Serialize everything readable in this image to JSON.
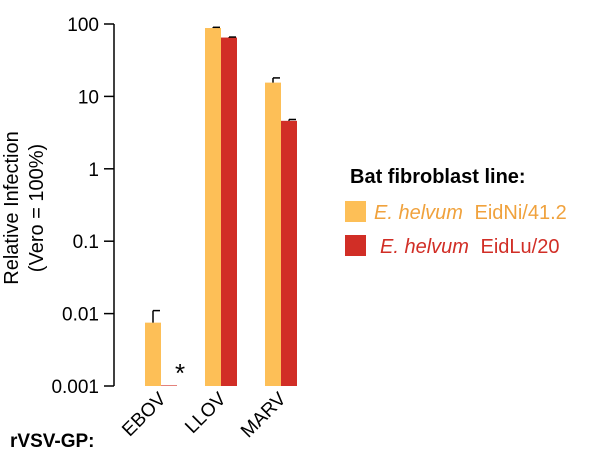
{
  "chart_data": {
    "type": "bar",
    "scale": "log",
    "ylim": [
      0.001,
      100
    ],
    "yticks": [
      "100",
      "10",
      "1",
      "0.1",
      "0.01",
      "0.001"
    ],
    "ylabel_line1": "Relative Infection",
    "ylabel_line2": "(Vero = 100%)",
    "x_prefix_label": "rVSV-GP:",
    "categories": [
      "EBOV",
      "LLOV",
      "MARV"
    ],
    "legend_title": "Bat fibroblast line:",
    "series": [
      {
        "name_species": "E. helvum",
        "name_line": "EidNi/41.2",
        "color": "#FDBF57",
        "values": [
          0.0075,
          88,
          15.5
        ],
        "errors_upper": [
          0.011,
          90,
          18
        ]
      },
      {
        "name_species": "E. helvum",
        "name_line": "EidLu/20",
        "color": "#D12E26",
        "values": [
          0.001,
          65,
          4.6
        ],
        "errors_upper": [
          null,
          66,
          4.8
        ]
      }
    ],
    "annotation": {
      "text": "*",
      "category": "EBOV",
      "series_index": 1
    }
  }
}
